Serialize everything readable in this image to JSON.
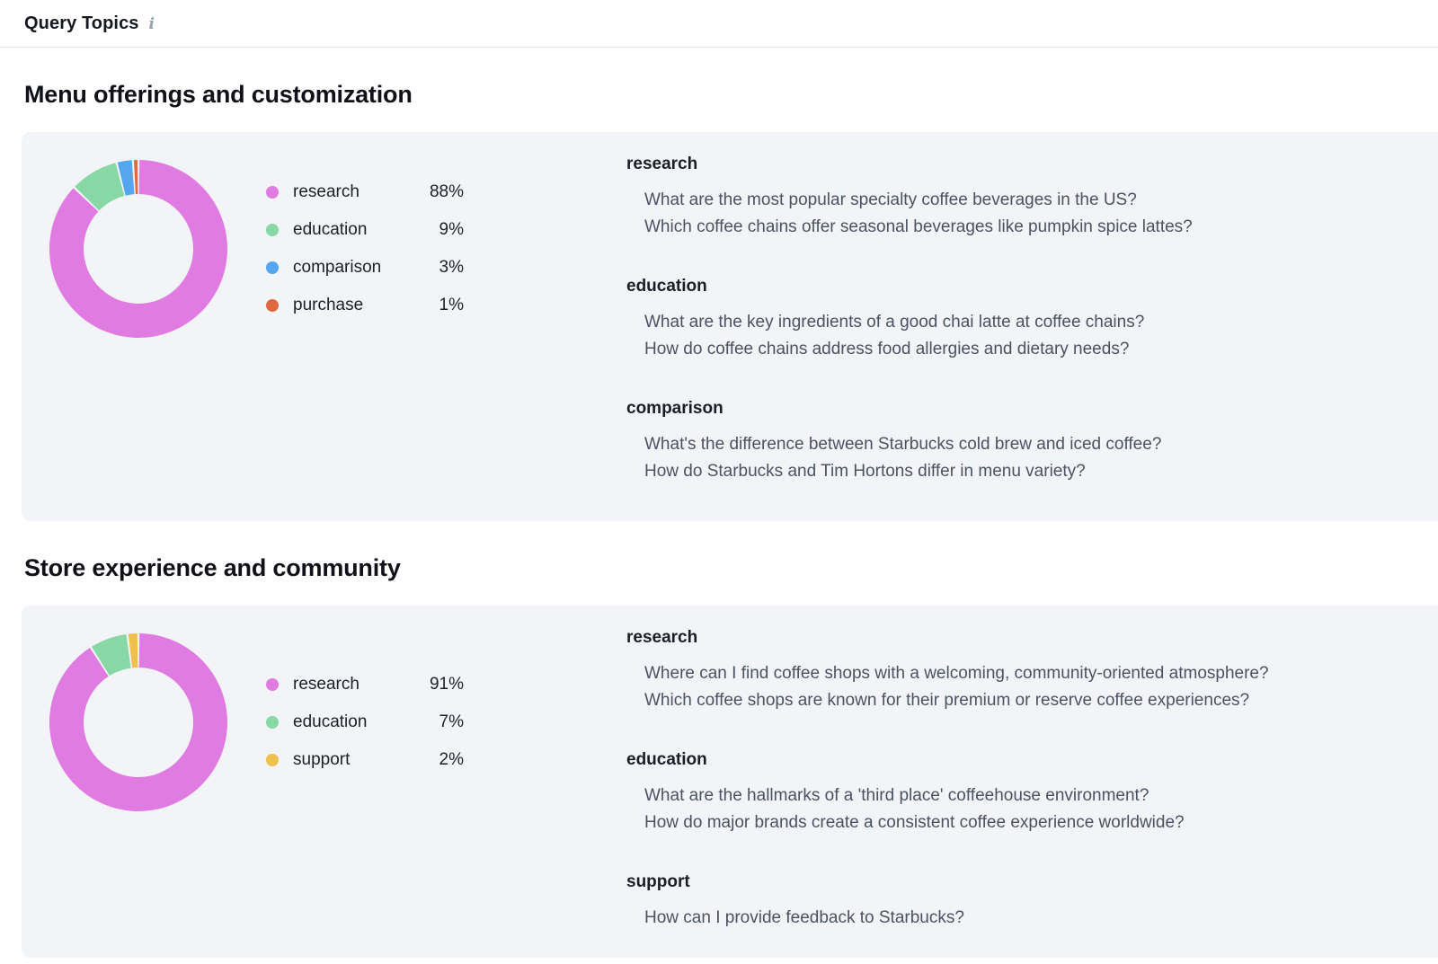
{
  "header": {
    "title": "Query Topics",
    "info_icon": "i"
  },
  "colors": {
    "card_bg": "#f3f4f8",
    "research": "#e07ce1",
    "education": "#87d8a4",
    "comparison": "#55a6f0",
    "purchase": "#e2693f",
    "support": "#eec14d"
  },
  "chart_data": [
    {
      "type": "pie",
      "subtype": "donut",
      "title": "Menu offerings and customization",
      "legend_position": "right",
      "segments": [
        {
          "label": "research",
          "value": 88,
          "pct": "88%",
          "color": "#e07ce1"
        },
        {
          "label": "education",
          "value": 9,
          "pct": "9%",
          "color": "#87d8a4"
        },
        {
          "label": "comparison",
          "value": 3,
          "pct": "3%",
          "color": "#55a6f0"
        },
        {
          "label": "purchase",
          "value": 1,
          "pct": "1%",
          "color": "#e2693f"
        }
      ]
    },
    {
      "type": "pie",
      "subtype": "donut",
      "title": "Store experience and community",
      "legend_position": "right",
      "segments": [
        {
          "label": "research",
          "value": 91,
          "pct": "91%",
          "color": "#e07ce1"
        },
        {
          "label": "education",
          "value": 7,
          "pct": "7%",
          "color": "#87d8a4"
        },
        {
          "label": "support",
          "value": 2,
          "pct": "2%",
          "color": "#eec14d"
        }
      ]
    }
  ],
  "sections": [
    {
      "title": "Menu offerings and customization",
      "chart": 0,
      "groups": [
        {
          "label": "research",
          "questions": [
            "What are the most popular specialty coffee beverages in the US?",
            "Which coffee chains offer seasonal beverages like pumpkin spice lattes?"
          ]
        },
        {
          "label": "education",
          "questions": [
            "What are the key ingredients of a good chai latte at coffee chains?",
            "How do coffee chains address food allergies and dietary needs?"
          ]
        },
        {
          "label": "comparison",
          "questions": [
            "What's the difference between Starbucks cold brew and iced coffee?",
            "How do Starbucks and Tim Hortons differ in menu variety?"
          ]
        }
      ]
    },
    {
      "title": "Store experience and community",
      "chart": 1,
      "groups": [
        {
          "label": "research",
          "questions": [
            "Where can I find coffee shops with a welcoming, community-oriented atmosphere?",
            "Which coffee shops are known for their premium or reserve coffee experiences?"
          ]
        },
        {
          "label": "education",
          "questions": [
            "What are the hallmarks of a 'third place' coffeehouse environment?",
            "How do major brands create a consistent coffee experience worldwide?"
          ]
        },
        {
          "label": "support",
          "questions": [
            "How can I provide feedback to Starbucks?"
          ]
        }
      ]
    }
  ]
}
